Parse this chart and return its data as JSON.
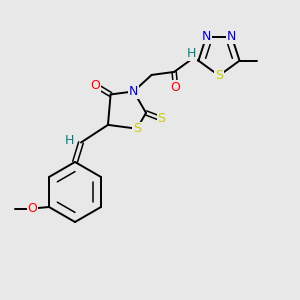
{
  "bg_color": "#e8e8e8",
  "atom_colors": {
    "C": "#000000",
    "N": "#0000cd",
    "O": "#ff0000",
    "S": "#cccc00",
    "H_label": "#008080"
  },
  "bond_color": "#000000",
  "font_size_atom": 9,
  "font_size_small": 8
}
